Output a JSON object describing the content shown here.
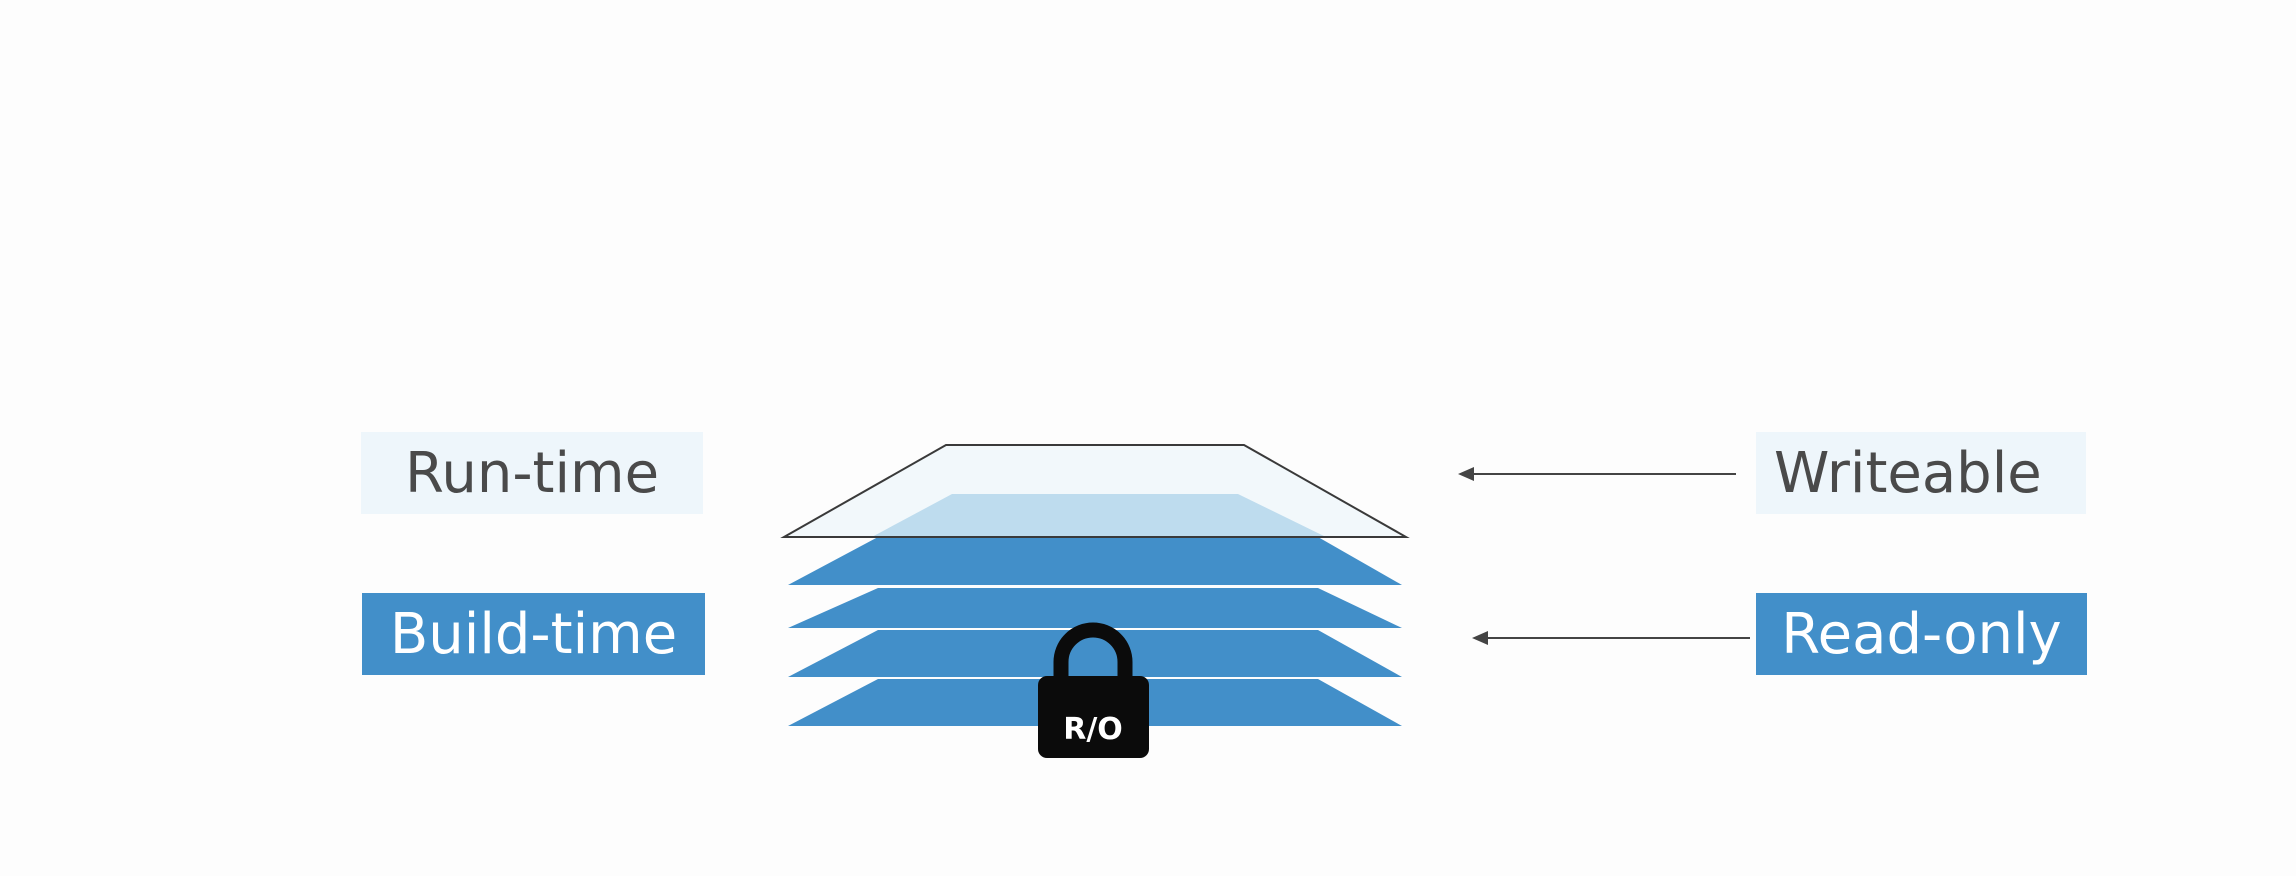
{
  "labels": {
    "runtime": "Run-time",
    "buildtime": "Build-time",
    "writeable": "Writeable",
    "readonly": "Read-only"
  },
  "lock": {
    "text": "R/O",
    "icon": "lock-icon"
  },
  "colors": {
    "layer_blue": "#428fc9",
    "layer_light": "#8bbfdf",
    "writeable_fill": "#eef6fb",
    "arrow": "#444444",
    "lock": "#0b0b0b"
  }
}
